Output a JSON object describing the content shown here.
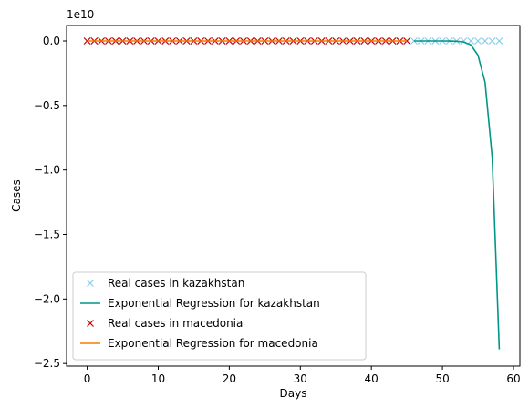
{
  "chart_data": {
    "type": "line",
    "xlabel": "Days",
    "ylabel": "Cases",
    "offset_text": "1e10",
    "xlim": [
      -2.9,
      60.9
    ],
    "ylim": [
      -2.52,
      0.12
    ],
    "xticks": [
      0,
      10,
      20,
      30,
      40,
      50,
      60
    ],
    "xtick_labels": [
      "0",
      "10",
      "20",
      "30",
      "40",
      "50",
      "60"
    ],
    "yticks": [
      0,
      -0.5,
      -1.0,
      -1.5,
      -2.0,
      -2.5
    ],
    "ytick_labels": [
      "0.0",
      "−0.5",
      "−1.0",
      "−1.5",
      "−2.0",
      "−2.5"
    ],
    "grid": false,
    "legend_position": "lower left",
    "series": [
      {
        "name": "Real cases in kazakhstan",
        "kind": "scatter",
        "marker": "x",
        "color": "#87CEEB",
        "x": [
          0,
          1,
          2,
          3,
          4,
          5,
          6,
          7,
          8,
          9,
          10,
          11,
          12,
          13,
          14,
          15,
          16,
          17,
          18,
          19,
          20,
          21,
          22,
          23,
          24,
          25,
          26,
          27,
          28,
          29,
          30,
          31,
          32,
          33,
          34,
          35,
          36,
          37,
          38,
          39,
          40,
          41,
          42,
          43,
          44,
          45,
          46,
          47,
          48,
          49,
          50,
          51,
          52,
          53,
          54,
          55,
          56,
          57,
          58
        ],
        "y": [
          0,
          0,
          0,
          0,
          0,
          0,
          0,
          0,
          0,
          0,
          0,
          0,
          0,
          0,
          0,
          0,
          0,
          0,
          0,
          0,
          0,
          0,
          0,
          0,
          0,
          0,
          0,
          0,
          0,
          0,
          0,
          0,
          0,
          0,
          0,
          0,
          0,
          0,
          0,
          0,
          0,
          0,
          0,
          0,
          0,
          0,
          0,
          0,
          0,
          0,
          0,
          0,
          0,
          0,
          0,
          0,
          0,
          0,
          0
        ]
      },
      {
        "name": "Exponential Regression for kazakhstan",
        "kind": "line",
        "color": "#009688",
        "x": [
          46,
          47,
          48,
          49,
          50,
          51,
          52,
          53,
          54,
          55,
          56,
          57,
          58
        ],
        "y": [
          0,
          0,
          0,
          0,
          0,
          -0.0005,
          -0.002,
          -0.008,
          -0.03,
          -0.11,
          -0.32,
          -0.9,
          -2.39
        ]
      },
      {
        "name": "Real cases in macedonia",
        "kind": "scatter",
        "marker": "x",
        "color": "#CC0000",
        "x": [
          0,
          1,
          2,
          3,
          4,
          5,
          6,
          7,
          8,
          9,
          10,
          11,
          12,
          13,
          14,
          15,
          16,
          17,
          18,
          19,
          20,
          21,
          22,
          23,
          24,
          25,
          26,
          27,
          28,
          29,
          30,
          31,
          32,
          33,
          34,
          35,
          36,
          37,
          38,
          39,
          40,
          41,
          42,
          43,
          44,
          45
        ],
        "y": [
          0,
          0,
          0,
          0,
          0,
          0,
          0,
          0,
          0,
          0,
          0,
          0,
          0,
          0,
          0,
          0,
          0,
          0,
          0,
          0,
          0,
          0,
          0,
          0,
          0,
          0,
          0,
          0,
          0,
          0,
          0,
          0,
          0,
          0,
          0,
          0,
          0,
          0,
          0,
          0,
          0,
          0,
          0,
          0,
          0,
          0
        ]
      },
      {
        "name": "Exponential Regression for macedonia",
        "kind": "line",
        "color": "#F57C00",
        "x": [
          0,
          5,
          10,
          15,
          20,
          25,
          30,
          35,
          40,
          45
        ],
        "y": [
          0,
          0,
          0,
          0,
          0,
          0,
          0,
          0,
          0,
          0
        ]
      }
    ]
  }
}
